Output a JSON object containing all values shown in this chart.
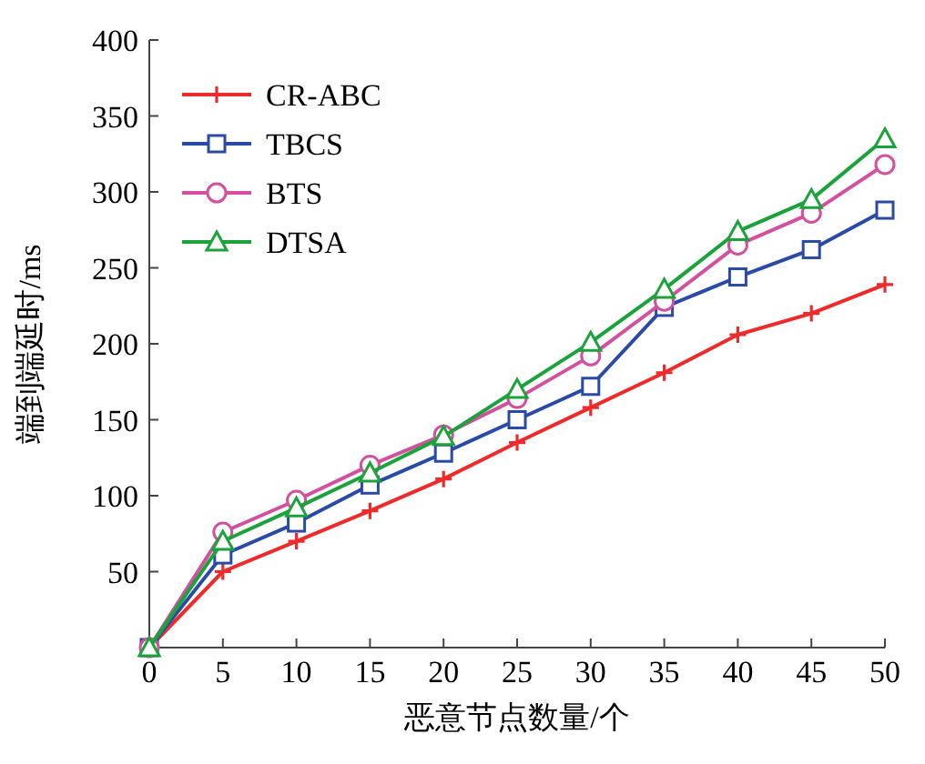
{
  "chart_data": {
    "type": "line",
    "xlabel": "恶意节点数量/个",
    "ylabel": "端到端延时/ms",
    "x": [
      0,
      5,
      10,
      15,
      20,
      25,
      30,
      35,
      40,
      45,
      50
    ],
    "series": [
      {
        "name": "CR-ABC",
        "color": "#ee2a2a",
        "marker": "cross",
        "values": [
          0,
          50,
          70,
          90,
          111,
          135,
          158,
          181,
          206,
          220,
          239
        ]
      },
      {
        "name": "TBCS",
        "color": "#2a4aa8",
        "marker": "square",
        "values": [
          0,
          61,
          82,
          107,
          128,
          150,
          172,
          224,
          244,
          262,
          288
        ]
      },
      {
        "name": "BTS",
        "color": "#d2509e",
        "marker": "circle",
        "values": [
          0,
          76,
          97,
          120,
          140,
          164,
          192,
          228,
          265,
          286,
          318
        ]
      },
      {
        "name": "DTSA",
        "color": "#1aa33a",
        "marker": "triangle",
        "values": [
          0,
          70,
          92,
          115,
          139,
          170,
          201,
          236,
          274,
          295,
          335
        ]
      }
    ],
    "xlim": [
      0,
      50
    ],
    "ylim": [
      0,
      400
    ],
    "xticks": [
      0,
      5,
      10,
      15,
      20,
      25,
      30,
      35,
      40,
      45,
      50
    ],
    "yticks": [
      50,
      100,
      150,
      200,
      250,
      300,
      350,
      400
    ],
    "grid": false,
    "legend": "top left",
    "line_style": "solid"
  }
}
